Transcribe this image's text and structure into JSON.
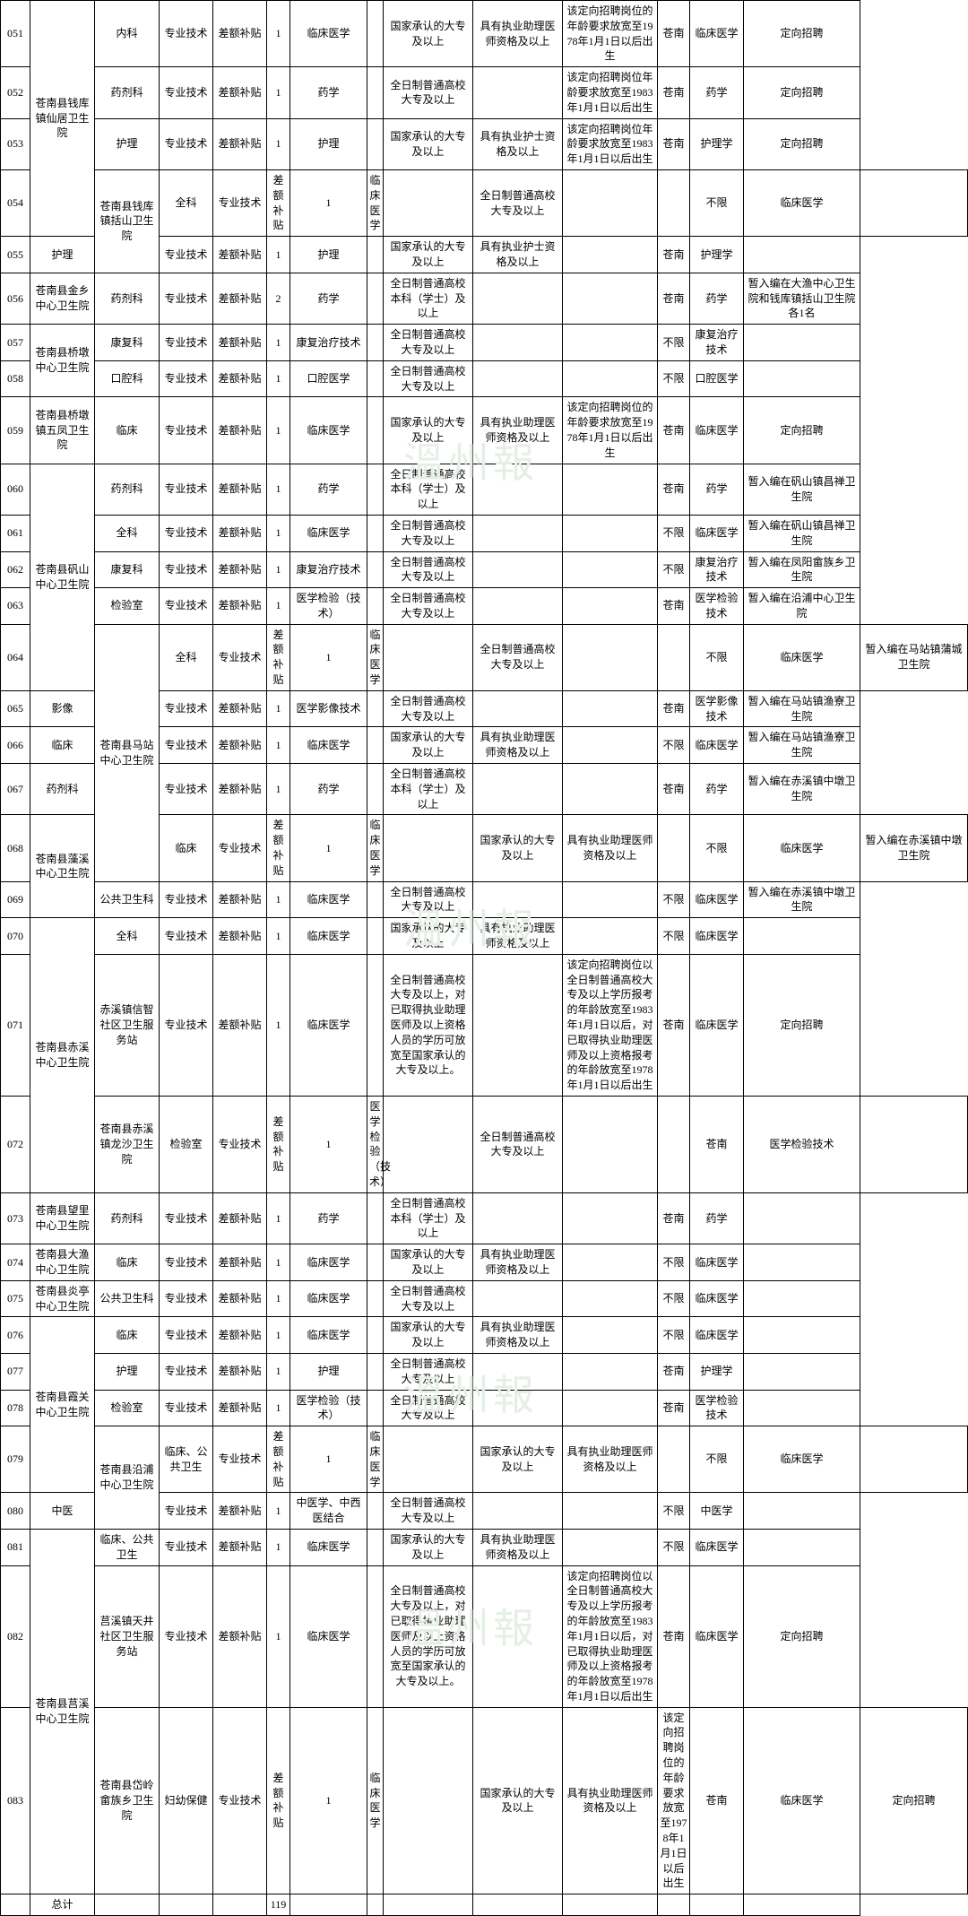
{
  "watermark_text": "溫州報",
  "watermark_color": "#e6efe6",
  "watermarks": [
    480,
    1000,
    1520,
    1780
  ],
  "total_label": "总计",
  "total_count": "119",
  "cols": [
    "c1",
    "c2",
    "c3",
    "c4",
    "c5",
    "c6",
    "c7",
    "c8",
    "c9",
    "c10",
    "c11",
    "c12",
    "c13",
    "c14"
  ],
  "rows": [
    {
      "id": "051",
      "unit": null,
      "dept": "内科",
      "type": "专业技术",
      "fund": "差额补贴",
      "n": "1",
      "major": "临床医学",
      "c8": "",
      "edu": "国家承认的大专及以上",
      "qual": "具有执业助理医师资格及以上",
      "age": "该定向招聘岗位的年龄要求放宽至1978年1月1日以后出生",
      "hukou": "苍南",
      "exam": "临床医学",
      "remark": "定向招聘"
    },
    {
      "id": "052",
      "unit": "苍南县钱库镇仙居卫生院",
      "unitspan": 3,
      "dept": "药剂科",
      "type": "专业技术",
      "fund": "差额补贴",
      "n": "1",
      "major": "药学",
      "c8": "",
      "edu": "全日制普通高校大专及以上",
      "qual": "",
      "age": "该定向招聘岗位年龄要求放宽至1983年1月1日以后出生",
      "hukou": "苍南",
      "exam": "药学",
      "remark": "定向招聘"
    },
    {
      "id": "053",
      "unit": null,
      "dept": "护理",
      "type": "专业技术",
      "fund": "差额补贴",
      "n": "1",
      "major": "护理",
      "c8": "",
      "edu": "国家承认的大专及以上",
      "qual": "具有执业护士资格及以上",
      "age": "该定向招聘岗位年龄要求放宽至1983年1月1日以后出生",
      "hukou": "苍南",
      "exam": "护理学",
      "remark": "定向招聘"
    },
    {
      "id": "054",
      "unit": "苍南县钱库镇括山卫生院",
      "unitspan": 2,
      "dept": "全科",
      "type": "专业技术",
      "fund": "差额补贴",
      "n": "1",
      "major": "临床医学",
      "c8": "",
      "edu": "全日制普通高校大专及以上",
      "qual": "",
      "age": "",
      "hukou": "不限",
      "exam": "临床医学",
      "remark": ""
    },
    {
      "id": "055",
      "unit": null,
      "dept": "护理",
      "type": "专业技术",
      "fund": "差额补贴",
      "n": "1",
      "major": "护理",
      "c8": "",
      "edu": "国家承认的大专及以上",
      "qual": "具有执业护士资格及以上",
      "age": "",
      "hukou": "苍南",
      "exam": "护理学",
      "remark": ""
    },
    {
      "id": "056",
      "unit": "苍南县金乡中心卫生院",
      "unitspan": 1,
      "dept": "药剂科",
      "type": "专业技术",
      "fund": "差额补贴",
      "n": "2",
      "major": "药学",
      "c8": "",
      "edu": "全日制普通高校本科（学士）及以上",
      "qual": "",
      "age": "",
      "hukou": "苍南",
      "exam": "药学",
      "remark": "暂入编在大渔中心卫生院和钱库镇括山卫生院各1名"
    },
    {
      "id": "057",
      "unit": "苍南县桥墩中心卫生院",
      "unitspan": 2,
      "dept": "康复科",
      "type": "专业技术",
      "fund": "差额补贴",
      "n": "1",
      "major": "康复治疗技术",
      "c8": "",
      "edu": "全日制普通高校大专及以上",
      "qual": "",
      "age": "",
      "hukou": "不限",
      "exam": "康复治疗技术",
      "remark": ""
    },
    {
      "id": "058",
      "unit": null,
      "dept": "口腔科",
      "type": "专业技术",
      "fund": "差额补贴",
      "n": "1",
      "major": "口腔医学",
      "c8": "",
      "edu": "全日制普通高校大专及以上",
      "qual": "",
      "age": "",
      "hukou": "不限",
      "exam": "口腔医学",
      "remark": ""
    },
    {
      "id": "059",
      "unit": "苍南县桥墩镇五凤卫生院",
      "unitspan": 1,
      "dept": "临床",
      "type": "专业技术",
      "fund": "差额补贴",
      "n": "1",
      "major": "临床医学",
      "c8": "",
      "edu": "国家承认的大专及以上",
      "qual": "具有执业助理医师资格及以上",
      "age": "该定向招聘岗位的年龄要求放宽至1978年1月1日以后出生",
      "hukou": "苍南",
      "exam": "临床医学",
      "remark": "定向招聘"
    },
    {
      "id": "060",
      "unit": null,
      "dept": "药剂科",
      "type": "专业技术",
      "fund": "差额补贴",
      "n": "1",
      "major": "药学",
      "c8": "",
      "edu": "全日制普通高校本科（学士）及以上",
      "qual": "",
      "age": "",
      "hukou": "苍南",
      "exam": "药学",
      "remark": "暂入编在矾山镇昌禅卫生院"
    },
    {
      "id": "061",
      "unit": "苍南县矾山中心卫生院",
      "unitspan": 4,
      "dept": "全科",
      "type": "专业技术",
      "fund": "差额补贴",
      "n": "1",
      "major": "临床医学",
      "c8": "",
      "edu": "全日制普通高校大专及以上",
      "qual": "",
      "age": "",
      "hukou": "不限",
      "exam": "临床医学",
      "remark": "暂入编在矾山镇昌禅卫生院"
    },
    {
      "id": "062",
      "unit": null,
      "dept": "康复科",
      "type": "专业技术",
      "fund": "差额补贴",
      "n": "1",
      "major": "康复治疗技术",
      "c8": "",
      "edu": "全日制普通高校大专及以上",
      "qual": "",
      "age": "",
      "hukou": "不限",
      "exam": "康复治疗技术",
      "remark": "暂入编在凤阳畲族乡卫生院"
    },
    {
      "id": "063",
      "unit": null,
      "dept": "检验室",
      "type": "专业技术",
      "fund": "差额补贴",
      "n": "1",
      "major": "医学检验（技术）",
      "c8": "",
      "edu": "全日制普通高校大专及以上",
      "qual": "",
      "age": "",
      "hukou": "苍南",
      "exam": "医学检验技术",
      "remark": "暂入编在沿浦中心卫生院"
    },
    {
      "id": "064",
      "unit": null,
      "dept": "全科",
      "type": "专业技术",
      "fund": "差额补贴",
      "n": "1",
      "major": "临床医学",
      "c8": "",
      "edu": "全日制普通高校大专及以上",
      "qual": "",
      "age": "",
      "hukou": "不限",
      "exam": "临床医学",
      "remark": "暂入编在马站镇蒲城卫生院"
    },
    {
      "id": "065",
      "unit": "苍南县马站中心卫生院",
      "unitspan": 4,
      "dept": "影像",
      "type": "专业技术",
      "fund": "差额补贴",
      "n": "1",
      "major": "医学影像技术",
      "c8": "",
      "edu": "全日制普通高校大专及以上",
      "qual": "",
      "age": "",
      "hukou": "苍南",
      "exam": "医学影像技术",
      "remark": "暂入编在马站镇渔寮卫生院"
    },
    {
      "id": "066",
      "unit": null,
      "dept": "临床",
      "type": "专业技术",
      "fund": "差额补贴",
      "n": "1",
      "major": "临床医学",
      "c8": "",
      "edu": "国家承认的大专及以上",
      "qual": "具有执业助理医师资格及以上",
      "age": "",
      "hukou": "不限",
      "exam": "临床医学",
      "remark": "暂入编在马站镇渔寮卫生院"
    },
    {
      "id": "067",
      "unit": null,
      "dept": "药剂科",
      "type": "专业技术",
      "fund": "差额补贴",
      "n": "1",
      "major": "药学",
      "c8": "",
      "edu": "全日制普通高校本科（学士）及以上",
      "qual": "",
      "age": "",
      "hukou": "苍南",
      "exam": "药学",
      "remark": "暂入编在赤溪镇中墩卫生院"
    },
    {
      "id": "068",
      "unit": "苍南县藻溪中心卫生院",
      "unitspan": 2,
      "dept": "临床",
      "type": "专业技术",
      "fund": "差额补贴",
      "n": "1",
      "major": "临床医学",
      "c8": "",
      "edu": "国家承认的大专及以上",
      "qual": "具有执业助理医师资格及以上",
      "age": "",
      "hukou": "不限",
      "exam": "临床医学",
      "remark": "暂入编在赤溪镇中墩卫生院"
    },
    {
      "id": "069",
      "unit": null,
      "dept": "公共卫生科",
      "type": "专业技术",
      "fund": "差额补贴",
      "n": "1",
      "major": "临床医学",
      "c8": "",
      "edu": "全日制普通高校大专及以上",
      "qual": "",
      "age": "",
      "hukou": "不限",
      "exam": "临床医学",
      "remark": "暂入编在赤溪镇中墩卫生院"
    },
    {
      "id": "070",
      "unit": null,
      "dept": "全科",
      "type": "专业技术",
      "fund": "差额补贴",
      "n": "1",
      "major": "临床医学",
      "c8": "",
      "edu": "国家承认的大专及以上",
      "qual": "具有执业助理医师资格及以上",
      "age": "",
      "hukou": "不限",
      "exam": "临床医学",
      "remark": ""
    },
    {
      "id": "071",
      "unit": "苍南县赤溪中心卫生院",
      "unitspan": 2,
      "dept": "赤溪镇信智社区卫生服务站",
      "type": "专业技术",
      "fund": "差额补贴",
      "n": "1",
      "major": "临床医学",
      "c8": "",
      "edu": "全日制普通高校大专及以上，对已取得执业助理医师及以上资格人员的学历可放宽至国家承认的大专及以上。",
      "qual": "",
      "age": "该定向招聘岗位以全日制普通高校大专及以上学历报考的年龄放宽至1983年1月1日以后，对已取得执业助理医师及以上资格报考的年龄放宽至1978年1月1日以后出生",
      "hukou": "苍南",
      "exam": "临床医学",
      "remark": "定向招聘"
    },
    {
      "id": "072",
      "unit": "苍南县赤溪镇龙沙卫生院",
      "unitspan": 1,
      "dept": "检验室",
      "type": "专业技术",
      "fund": "差额补贴",
      "n": "1",
      "major": "医学检验（技术）",
      "c8": "",
      "edu": "全日制普通高校大专及以上",
      "qual": "",
      "age": "",
      "hukou": "苍南",
      "exam": "医学检验技术",
      "remark": ""
    },
    {
      "id": "073",
      "unit": "苍南县望里中心卫生院",
      "unitspan": 1,
      "dept": "药剂科",
      "type": "专业技术",
      "fund": "差额补贴",
      "n": "1",
      "major": "药学",
      "c8": "",
      "edu": "全日制普通高校本科（学士）及以上",
      "qual": "",
      "age": "",
      "hukou": "苍南",
      "exam": "药学",
      "remark": ""
    },
    {
      "id": "074",
      "unit": "苍南县大渔中心卫生院",
      "unitspan": 1,
      "dept": "临床",
      "type": "专业技术",
      "fund": "差额补贴",
      "n": "1",
      "major": "临床医学",
      "c8": "",
      "edu": "国家承认的大专及以上",
      "qual": "具有执业助理医师资格及以上",
      "age": "",
      "hukou": "不限",
      "exam": "临床医学",
      "remark": ""
    },
    {
      "id": "075",
      "unit": "苍南县炎亭中心卫生院",
      "unitspan": 1,
      "dept": "公共卫生科",
      "type": "专业技术",
      "fund": "差额补贴",
      "n": "1",
      "major": "临床医学",
      "c8": "",
      "edu": "全日制普通高校大专及以上",
      "qual": "",
      "age": "",
      "hukou": "不限",
      "exam": "临床医学",
      "remark": ""
    },
    {
      "id": "076",
      "unit": null,
      "dept": "临床",
      "type": "专业技术",
      "fund": "差额补贴",
      "n": "1",
      "major": "临床医学",
      "c8": "",
      "edu": "国家承认的大专及以上",
      "qual": "具有执业助理医师资格及以上",
      "age": "",
      "hukou": "不限",
      "exam": "临床医学",
      "remark": ""
    },
    {
      "id": "077",
      "unit": "苍南县霞关中心卫生院",
      "unitspan": 3,
      "dept": "护理",
      "type": "专业技术",
      "fund": "差额补贴",
      "n": "1",
      "major": "护理",
      "c8": "",
      "edu": "全日制普通高校大专及以上",
      "qual": "",
      "age": "",
      "hukou": "苍南",
      "exam": "护理学",
      "remark": ""
    },
    {
      "id": "078",
      "unit": null,
      "dept": "检验室",
      "type": "专业技术",
      "fund": "差额补贴",
      "n": "1",
      "major": "医学检验（技术）",
      "c8": "",
      "edu": "全日制普通高校大专及以上",
      "qual": "",
      "age": "",
      "hukou": "苍南",
      "exam": "医学检验技术",
      "remark": ""
    },
    {
      "id": "079",
      "unit": "苍南县沿浦中心卫生院",
      "unitspan": 2,
      "dept": "临床、公共卫生",
      "type": "专业技术",
      "fund": "差额补贴",
      "n": "1",
      "major": "临床医学",
      "c8": "",
      "edu": "国家承认的大专及以上",
      "qual": "具有执业助理医师资格及以上",
      "age": "",
      "hukou": "不限",
      "exam": "临床医学",
      "remark": ""
    },
    {
      "id": "080",
      "unit": null,
      "dept": "中医",
      "type": "专业技术",
      "fund": "差额补贴",
      "n": "1",
      "major": "中医学、中西医结合",
      "c8": "",
      "edu": "全日制普通高校大专及以上",
      "qual": "",
      "age": "",
      "hukou": "不限",
      "exam": "中医学",
      "remark": ""
    },
    {
      "id": "081",
      "unit": null,
      "dept": "临床、公共卫生",
      "type": "专业技术",
      "fund": "差额补贴",
      "n": "1",
      "major": "临床医学",
      "c8": "",
      "edu": "国家承认的大专及以上",
      "qual": "具有执业助理医师资格及以上",
      "age": "",
      "hukou": "不限",
      "exam": "临床医学",
      "remark": ""
    },
    {
      "id": "082",
      "unit": "苍南县莒溪中心卫生院",
      "unitspan": 2,
      "dept": "莒溪镇天井社区卫生服务站",
      "type": "专业技术",
      "fund": "差额补贴",
      "n": "1",
      "major": "临床医学",
      "c8": "",
      "edu": "全日制普通高校大专及以上，对已取得执业助理医师及以上资格人员的学历可放宽至国家承认的大专及以上。",
      "qual": "",
      "age": "该定向招聘岗位以全日制普通高校大专及以上学历报考的年龄放宽至1983年1月1日以后，对已取得执业助理医师及以上资格报考的年龄放宽至1978年1月1日以后出生",
      "hukou": "苍南",
      "exam": "临床医学",
      "remark": "定向招聘"
    },
    {
      "id": "083",
      "unit": "苍南县岱岭畲族乡卫生院",
      "unitspan": 1,
      "dept": "妇幼保健",
      "type": "专业技术",
      "fund": "差额补贴",
      "n": "1",
      "major": "临床医学",
      "c8": "",
      "edu": "国家承认的大专及以上",
      "qual": "具有执业助理医师资格及以上",
      "age": "该定向招聘岗位的年龄要求放宽至1978年1月1日以后出生",
      "hukou": "苍南",
      "exam": "临床医学",
      "remark": "定向招聘"
    }
  ],
  "unit_groups_up": {
    "051": "052",
    "060": "061",
    "064": "065",
    "070": "071",
    "076": "077",
    "081": "082"
  }
}
